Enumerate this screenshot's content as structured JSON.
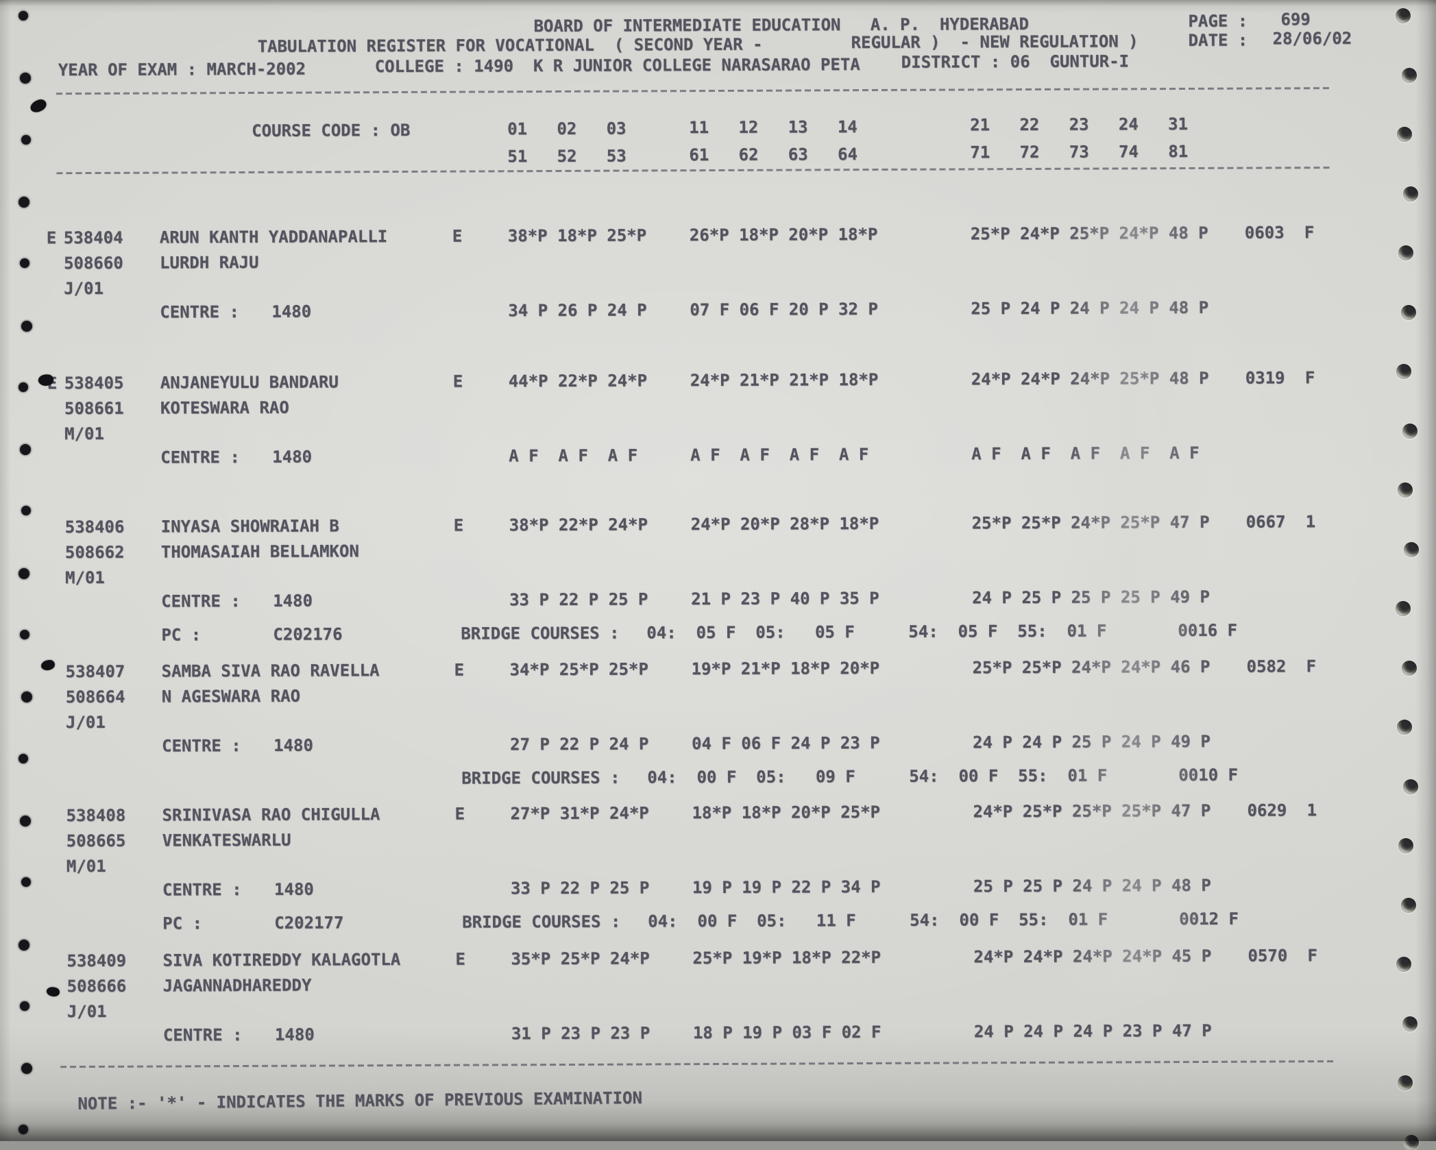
{
  "header": {
    "board_title": "BOARD OF INTERMEDIATE EDUCATION   A. P.  HYDERABAD",
    "page_label": "PAGE :",
    "page_value": "699",
    "register_title": "TABULATION REGISTER FOR VOCATIONAL  ( SECOND YEAR -",
    "regulation": "REGULAR )  - NEW REGULATION )",
    "date_label": "DATE :",
    "date_value": "28/06/02",
    "year_of_exam": "YEAR OF EXAM : MARCH-2002",
    "college": "COLLEGE : 1490  K R JUNIOR COLLEGE NARASARAO PETA",
    "district": "DISTRICT : 06  GUNTUR-I"
  },
  "course": {
    "code_label": "COURSE CODE : OB",
    "cols_r1a": "01   02   03",
    "cols_r1b": "11   12   13   14",
    "cols_r1c": "21   22   23   24   31",
    "cols_r2a": "51   52   53",
    "cols_r2b": "61   62   63   64",
    "cols_r2c": "71   72   73   74   81"
  },
  "records": [
    {
      "flag": "E",
      "reg_no": "538404",
      "name": "ARUN KANTH YADDANAPALLI",
      "alt_no": "508660",
      "father": "LURDH RAJU",
      "month": "J/01",
      "medium": "E",
      "m1a": "38*P 18*P 25*P",
      "m1b": "26*P 18*P 20*P 18*P",
      "m1c": "25*P 24*P 25*P 24*P 48 P",
      "total": "0603",
      "result": "F",
      "centre_label": "CENTRE :",
      "centre": "1480",
      "m2a": "34 P 26 P 24 P",
      "m2b": "07 F 06 F 20 P 32 P",
      "m2c": "25 P 24 P 24 P 24 P 48 P"
    },
    {
      "flag": "E",
      "reg_no": "538405",
      "name": "ANJANEYULU BANDARU",
      "alt_no": "508661",
      "father": "KOTESWARA RAO",
      "month": "M/01",
      "medium": "E",
      "m1a": "44*P 22*P 24*P",
      "m1b": "24*P 21*P 21*P 18*P",
      "m1c": "24*P 24*P 24*P 25*P 48 P",
      "total": "0319",
      "result": "F",
      "centre_label": "CENTRE :",
      "centre": "1480",
      "m2a": "A F  A F  A F",
      "m2b": "A F  A F  A F  A F",
      "m2c": "A F  A F  A F  A F  A F"
    },
    {
      "reg_no": "538406",
      "name": "INYASA SHOWRAIAH B",
      "alt_no": "508662",
      "father": "THOMASAIAH BELLAMKON",
      "month": "M/01",
      "medium": "E",
      "m1a": "38*P 22*P 24*P",
      "m1b": "24*P 20*P 28*P 18*P",
      "m1c": "25*P 25*P 24*P 25*P 47 P",
      "total": "0667",
      "result": "1",
      "centre_label": "CENTRE :",
      "centre": "1480",
      "m2a": "33 P 22 P 25 P",
      "m2b": "21 P 23 P 40 P 35 P",
      "m2c": "24 P 25 P 25 P 25 P 49 P",
      "pc_label": "PC :",
      "pc": "C202176",
      "bc_label": "BRIDGE COURSES :",
      "bc1": "04:  05 F  05:   05 F",
      "bc2": "54:  05 F  55:  01 F",
      "bc_total": "0016 F"
    },
    {
      "reg_no": "538407",
      "name": "SAMBA SIVA RAO RAVELLA",
      "alt_no": "508664",
      "father": "N AGESWARA RAO",
      "month": "J/01",
      "medium": "E",
      "m1a": "34*P 25*P 25*P",
      "m1b": "19*P 21*P 18*P 20*P",
      "m1c": "25*P 25*P 24*P 24*P 46 P",
      "total": "0582",
      "result": "F",
      "centre_label": "CENTRE :",
      "centre": "1480",
      "m2a": "27 P 22 P 24 P",
      "m2b": "04 F 06 F 24 P 23 P",
      "m2c": "24 P 24 P 25 P 24 P 49 P",
      "bc_label": "BRIDGE COURSES :",
      "bc1": "04:  00 F  05:   09 F",
      "bc2": "54:  00 F  55:  01 F",
      "bc_total": "0010 F"
    },
    {
      "reg_no": "538408",
      "name": "SRINIVASA RAO CHIGULLA",
      "alt_no": "508665",
      "father": "VENKATESWARLU",
      "month": "M/01",
      "medium": "E",
      "m1a": "27*P 31*P 24*P",
      "m1b": "18*P 18*P 20*P 25*P",
      "m1c": "24*P 25*P 25*P 25*P 47 P",
      "total": "0629",
      "result": "1",
      "centre_label": "CENTRE :",
      "centre": "1480",
      "m2a": "33 P 22 P 25 P",
      "m2b": "19 P 19 P 22 P 34 P",
      "m2c": "25 P 25 P 24 P 24 P 48 P",
      "pc_label": "PC :",
      "pc": "C202177",
      "bc_label": "BRIDGE COURSES :",
      "bc1": "04:  00 F  05:   11 F",
      "bc2": "54:  00 F  55:  01 F",
      "bc_total": "0012 F"
    },
    {
      "reg_no": "538409",
      "name": "SIVA KOTIREDDY KALAGOTLA",
      "alt_no": "508666",
      "father": "JAGANNADHAREDDY",
      "month": "J/01",
      "medium": "E",
      "m1a": "35*P 25*P 24*P",
      "m1b": "25*P 19*P 18*P 22*P",
      "m1c": "24*P 24*P 24*P 24*P 45 P",
      "total": "0570",
      "result": "F",
      "centre_label": "CENTRE :",
      "centre": "1480",
      "m2a": "31 P 23 P 23 P",
      "m2b": "18 P 19 P 03 F 02 F",
      "m2c": "24 P 24 P 24 P 23 P 47 P"
    }
  ],
  "footer": {
    "note": "NOTE :- '*' - INDICATES THE MARKS OF PREVIOUS EXAMINATION"
  },
  "colors": {
    "paper": "#d6d6d2",
    "ink": "#54545f"
  }
}
